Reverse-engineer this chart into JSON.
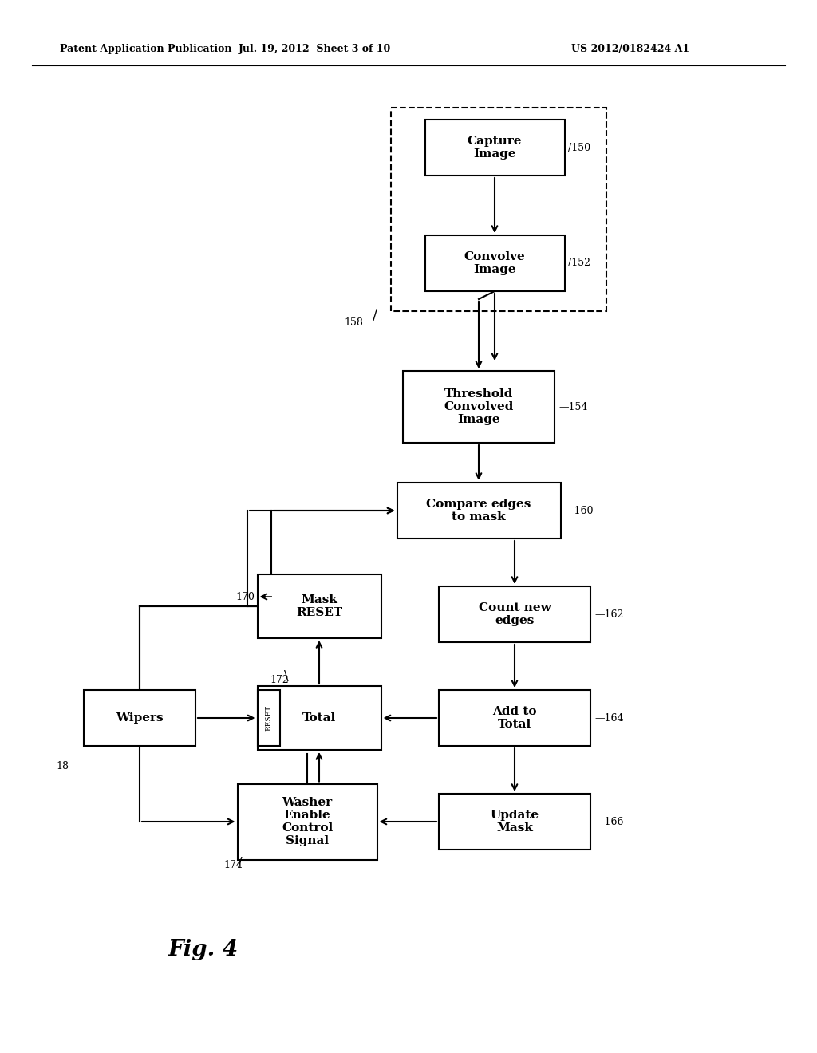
{
  "bg_color": "#ffffff",
  "header_left": "Patent Application Publication",
  "header_mid": "Jul. 19, 2012  Sheet 3 of 10",
  "header_right": "US 2012/0182424 A1",
  "fig_label": "Fig. 4",
  "lw": 1.5
}
